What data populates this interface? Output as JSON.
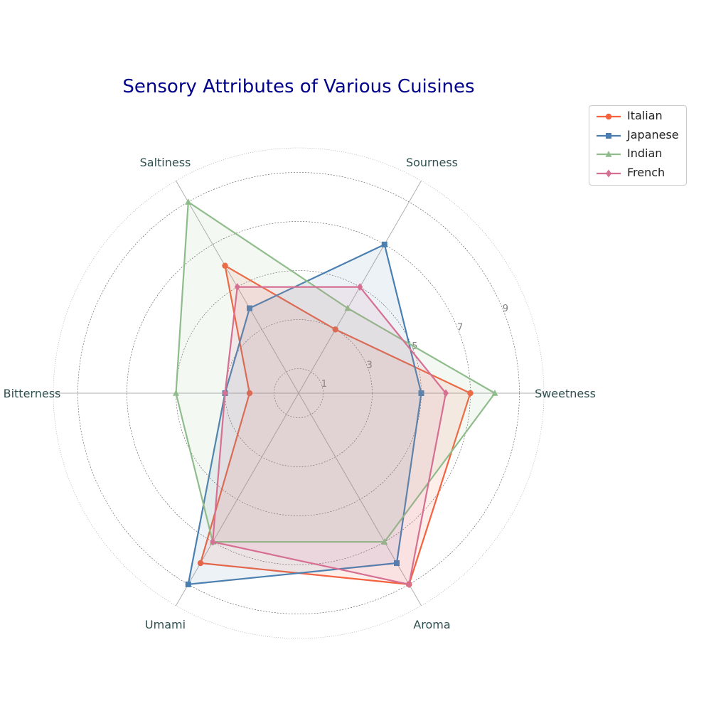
{
  "chart_data": {
    "type": "radar",
    "title": "Sensory Attributes of Various Cuisines",
    "axes": [
      "Sweetness",
      "Sourness",
      "Saltiness",
      "Bitterness",
      "Umami",
      "Aroma"
    ],
    "rlim": [
      0,
      10
    ],
    "r_ticks": [
      "1",
      "3",
      "5",
      "7",
      "9"
    ],
    "grid": true,
    "legend_position": "top-right",
    "series": [
      {
        "name": "Italian",
        "values": [
          7,
          3,
          6,
          2,
          8,
          9
        ],
        "color": "#f4623f",
        "marker": "circle"
      },
      {
        "name": "Japanese",
        "values": [
          5,
          7,
          4,
          3,
          9,
          8
        ],
        "color": "#4a7fb0",
        "marker": "square"
      },
      {
        "name": "Indian",
        "values": [
          8,
          4,
          9,
          5,
          7,
          7
        ],
        "color": "#8fbc8b",
        "marker": "triangle"
      },
      {
        "name": "French",
        "values": [
          6,
          5,
          5,
          3,
          7,
          9
        ],
        "color": "#d66f92",
        "marker": "diamond"
      }
    ]
  }
}
